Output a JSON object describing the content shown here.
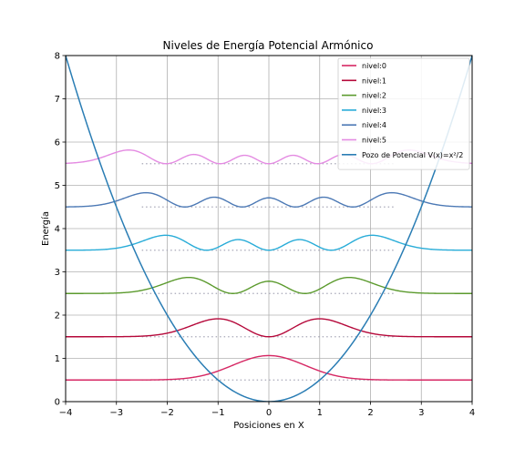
{
  "chart_data": {
    "type": "line",
    "title": "Niveles de Energía Potencial Armónico",
    "xlabel": "Posiciones en X",
    "ylabel": "Energía",
    "xlim": [
      -4,
      4
    ],
    "ylim": [
      0,
      8
    ],
    "xticks": [
      -4,
      -3,
      -2,
      -1,
      0,
      1,
      2,
      3,
      4
    ],
    "yticks": [
      0,
      1,
      2,
      3,
      4,
      5,
      6,
      7,
      8
    ],
    "xtick_labels": [
      "−4",
      "−3",
      "−2",
      "−1",
      "0",
      "1",
      "2",
      "3",
      "4"
    ],
    "ytick_labels": [
      "0",
      "1",
      "2",
      "3",
      "4",
      "5",
      "6",
      "7",
      "8"
    ],
    "grid": true,
    "legend_position": "top-right",
    "levels": [
      {
        "name": "nivel:0",
        "n": 0,
        "energy": 0.5,
        "color": "#d62763"
      },
      {
        "name": "nivel:1",
        "n": 1,
        "energy": 1.5,
        "color": "#b5083a"
      },
      {
        "name": "nivel:2",
        "n": 2,
        "energy": 2.5,
        "color": "#5b9a2d"
      },
      {
        "name": "nivel:3",
        "n": 3,
        "energy": 3.5,
        "color": "#28acd8"
      },
      {
        "name": "nivel:4",
        "n": 4,
        "energy": 4.5,
        "color": "#4c79b5"
      },
      {
        "name": "nivel:5",
        "n": 5,
        "energy": 5.5,
        "color": "#e48be2"
      }
    ],
    "potential": {
      "name": "Pozo de Potencial V(x)=x²/2",
      "color": "#2a7db4"
    },
    "baseline_style": {
      "color": "#a8a8b8",
      "dash": "dotted"
    }
  }
}
